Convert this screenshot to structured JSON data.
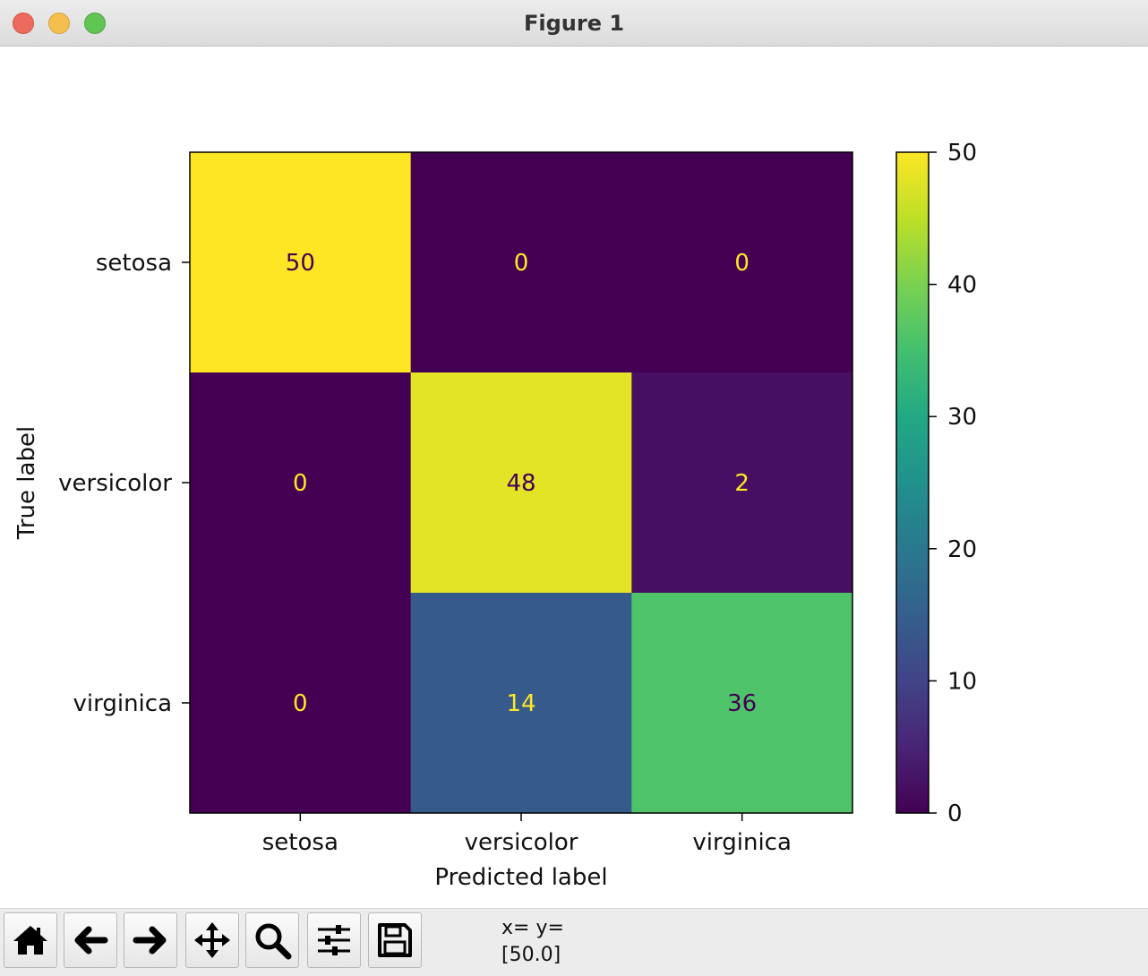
{
  "window": {
    "title": "Figure 1"
  },
  "toolbar": {
    "buttons": [
      {
        "name": "home-icon"
      },
      {
        "name": "back-arrow-icon"
      },
      {
        "name": "forward-arrow-icon"
      },
      {
        "name": "pan-move-icon"
      },
      {
        "name": "zoom-magnifier-icon"
      },
      {
        "name": "configure-subplots-icon"
      },
      {
        "name": "save-floppy-icon"
      }
    ]
  },
  "coords": {
    "line1": "x= y=",
    "line2": "[50.0]"
  },
  "chart_data": {
    "type": "heatmap",
    "xlabel": "Predicted label",
    "ylabel": "True label",
    "x_categories": [
      "setosa",
      "versicolor",
      "virginica"
    ],
    "y_categories": [
      "setosa",
      "versicolor",
      "virginica"
    ],
    "values": [
      [
        50,
        0,
        0
      ],
      [
        0,
        48,
        2
      ],
      [
        0,
        14,
        36
      ]
    ],
    "cell_labels": [
      [
        "50",
        "0",
        "0"
      ],
      [
        "0",
        "48",
        "2"
      ],
      [
        "0",
        "14",
        "36"
      ]
    ],
    "colormap": "viridis",
    "colorbar": {
      "min": 0,
      "max": 50,
      "ticks": [
        "0",
        "10",
        "20",
        "30",
        "40",
        "50"
      ]
    },
    "text_colors": {
      "on_dark": "#fde725",
      "on_light": "#440154"
    }
  }
}
